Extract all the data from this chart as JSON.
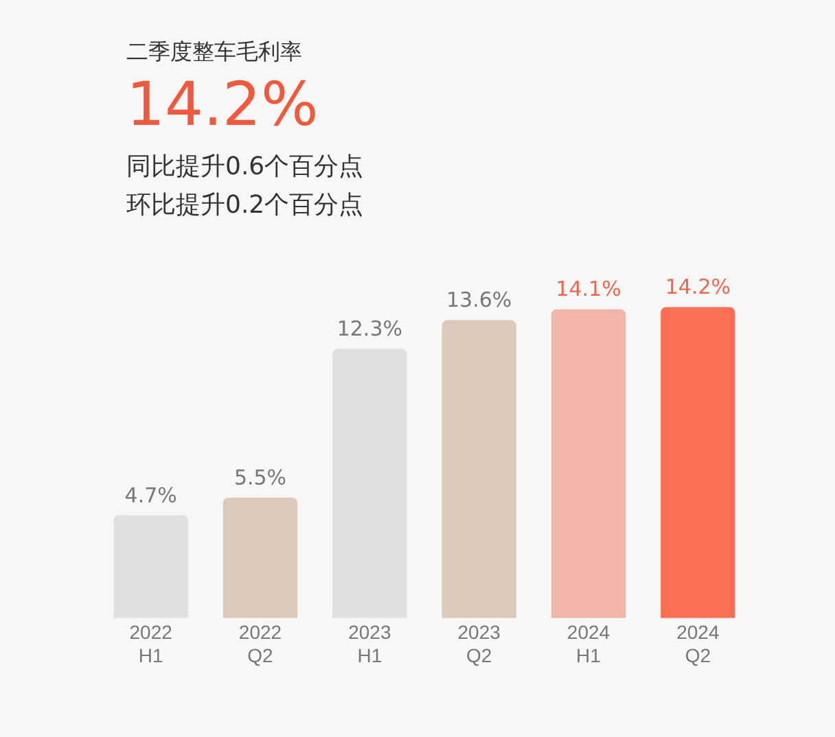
{
  "chart_data": {
    "type": "bar",
    "title": "二季度整车毛利率",
    "subtitle": "14.2%",
    "annotations": [
      "同比提升0.6个百分点",
      "环比提升0.2个百分点"
    ],
    "categories": [
      "2022 H1",
      "2022 Q2",
      "2023 H1",
      "2023 Q2",
      "2024 H1",
      "2024 Q2"
    ],
    "values": [
      4.7,
      5.5,
      12.3,
      13.6,
      14.1,
      14.2
    ],
    "colors": [
      "#e2e0df",
      "#dcc9bb",
      "#e2e0df",
      "#dcc9bb",
      "#f2b6a8",
      "#fb6f50"
    ],
    "value_labels": [
      "4.7%",
      "5.5%",
      "12.3%",
      "13.6%",
      "14.1%",
      "14.2%"
    ],
    "grid": false,
    "legend": false
  }
}
